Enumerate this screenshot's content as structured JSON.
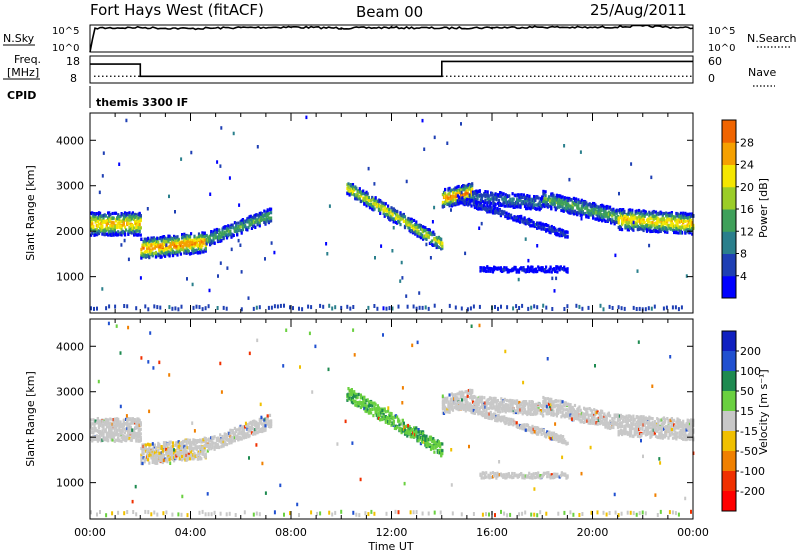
{
  "header": {
    "station": "Fort Hays West (fitACF)",
    "beam": "Beam 00",
    "date": "25/Aug/2011"
  },
  "strips": {
    "nsky_label": "N.Sky",
    "nsky_ticks": [
      "10^5",
      "10^0"
    ],
    "nsearch_label": "N.Search",
    "nsearch_ticks": [
      "10^5",
      "10^0"
    ],
    "freq_label": "Freq.",
    "freq_unit": "[MHz]",
    "freq_ticks": [
      "18",
      "8"
    ],
    "nave_label": "Nave",
    "nave_ticks": [
      "60",
      "0"
    ],
    "cpid_label": "CPID",
    "cpid_value": "themis 3300 IF"
  },
  "chart_data": [
    {
      "type": "line",
      "name": "noise-strip",
      "ylabel": "N.Sky",
      "y2label": "N.Search",
      "x_hours": [
        0,
        0.2,
        2,
        4,
        6,
        8,
        10,
        12,
        14,
        16,
        18,
        20,
        22,
        24
      ],
      "nsky_log10": [
        0,
        4.6,
        4.7,
        4.5,
        4.7,
        4.8,
        4.6,
        4.7,
        4.6,
        4.7,
        4.8,
        4.7,
        5.0,
        4.6
      ]
    },
    {
      "type": "line",
      "name": "frequency-strip",
      "ylabel": "Freq. [MHz]",
      "ylim": [
        8,
        18
      ],
      "y2label": "Nave",
      "y2lim": [
        0,
        60
      ],
      "freq_steps": [
        {
          "from": 0,
          "to": 2,
          "value": 15
        },
        {
          "from": 2,
          "to": 14,
          "value": 10.5
        },
        {
          "from": 14,
          "to": 24,
          "value": 16
        }
      ],
      "nave_value": 15
    },
    {
      "type": "heatmap",
      "name": "power",
      "xlabel": "",
      "ylabel": "Slant Range [km]",
      "yticks": [
        1000,
        2000,
        3000,
        4000
      ],
      "ylim": [
        200,
        4600
      ],
      "colorbar_label": "Power [dB]",
      "colorbar_ticks": [
        "4",
        "8",
        "12",
        "16",
        "20",
        "24",
        "28"
      ],
      "colorbar_range": [
        4,
        30
      ],
      "bands": [
        {
          "start_h": 0.0,
          "end_h": 2.0,
          "center_start_km": 2150,
          "center_end_km": 2150,
          "width_km": 500,
          "peak_db": 20
        },
        {
          "start_h": 2.0,
          "end_h": 4.6,
          "center_start_km": 1600,
          "center_end_km": 1750,
          "width_km": 450,
          "peak_db": 22
        },
        {
          "start_h": 4.6,
          "end_h": 7.2,
          "center_start_km": 1800,
          "center_end_km": 2350,
          "width_km": 300,
          "peak_db": 14
        },
        {
          "start_h": 10.2,
          "end_h": 14.0,
          "center_start_km": 2950,
          "center_end_km": 1700,
          "width_km": 300,
          "peak_db": 18
        },
        {
          "start_h": 14.0,
          "end_h": 15.2,
          "center_start_km": 2700,
          "center_end_km": 2850,
          "width_km": 400,
          "peak_db": 22
        },
        {
          "start_h": 15.2,
          "end_h": 18.0,
          "center_start_km": 2750,
          "center_end_km": 2600,
          "width_km": 300,
          "peak_db": 10
        },
        {
          "start_h": 18.0,
          "end_h": 21.0,
          "center_start_km": 2700,
          "center_end_km": 2300,
          "width_km": 350,
          "peak_db": 14
        },
        {
          "start_h": 21.0,
          "end_h": 24.0,
          "center_start_km": 2250,
          "center_end_km": 2150,
          "width_km": 450,
          "peak_db": 20
        },
        {
          "start_h": 14.6,
          "end_h": 19.0,
          "center_start_km": 2700,
          "center_end_km": 1900,
          "width_km": 150,
          "peak_db": 8
        },
        {
          "start_h": 15.5,
          "end_h": 19.0,
          "center_start_km": 1150,
          "center_end_km": 1150,
          "width_km": 120,
          "peak_db": 6
        }
      ],
      "ground_scatter_km": 280
    },
    {
      "type": "heatmap",
      "name": "velocity",
      "xlabel": "Time UT",
      "ylabel": "Slant Range [km]",
      "yticks": [
        1000,
        2000,
        3000,
        4000
      ],
      "ylim": [
        200,
        4600
      ],
      "xticks": [
        "00:00",
        "04:00",
        "08:00",
        "12:00",
        "16:00",
        "20:00",
        "00:00"
      ],
      "colorbar_label": "Velocity [m s⁻¹]",
      "colorbar_ticks": [
        "200",
        "100",
        "50",
        "15",
        "-15",
        "-50",
        "-100",
        "-200"
      ],
      "colorbar_range": [
        -250,
        250
      ],
      "bands": [
        {
          "start_h": 0.0,
          "end_h": 2.0,
          "center_start_km": 2150,
          "center_end_km": 2150,
          "width_km": 500,
          "vel": 0
        },
        {
          "start_h": 2.0,
          "end_h": 4.6,
          "center_start_km": 1600,
          "center_end_km": 1750,
          "width_km": 450,
          "vel": -5
        },
        {
          "start_h": 4.6,
          "end_h": 7.2,
          "center_start_km": 1800,
          "center_end_km": 2350,
          "width_km": 300,
          "vel": 0
        },
        {
          "start_h": 10.2,
          "end_h": 14.0,
          "center_start_km": 2950,
          "center_end_km": 1700,
          "width_km": 300,
          "vel": 45
        },
        {
          "start_h": 14.0,
          "end_h": 15.2,
          "center_start_km": 2700,
          "center_end_km": 2850,
          "width_km": 400,
          "vel": 0
        },
        {
          "start_h": 15.2,
          "end_h": 18.0,
          "center_start_km": 2750,
          "center_end_km": 2600,
          "width_km": 300,
          "vel": 0
        },
        {
          "start_h": 18.0,
          "end_h": 21.0,
          "center_start_km": 2700,
          "center_end_km": 2300,
          "width_km": 350,
          "vel": 0
        },
        {
          "start_h": 21.0,
          "end_h": 24.0,
          "center_start_km": 2250,
          "center_end_km": 2150,
          "width_km": 450,
          "vel": 0
        },
        {
          "start_h": 14.6,
          "end_h": 19.0,
          "center_start_km": 2700,
          "center_end_km": 1900,
          "width_km": 150,
          "vel": 0
        },
        {
          "start_h": 15.5,
          "end_h": 19.0,
          "center_start_km": 1150,
          "center_end_km": 1150,
          "width_km": 120,
          "vel": 0
        }
      ],
      "ground_scatter_km": 280
    }
  ],
  "colors": {
    "power_scale": [
      "#0000ff",
      "#1e3fb4",
      "#2a7f8c",
      "#3fa05a",
      "#9bcd28",
      "#f5e600",
      "#f5a000",
      "#f06400",
      "#e62800",
      "#ff0000"
    ],
    "velocity_scale": [
      "#1020c0",
      "#2050d0",
      "#1e8a50",
      "#6ad040",
      "#c8c8c8",
      "#f0c000",
      "#f08000",
      "#f03000",
      "#ff0000"
    ]
  }
}
